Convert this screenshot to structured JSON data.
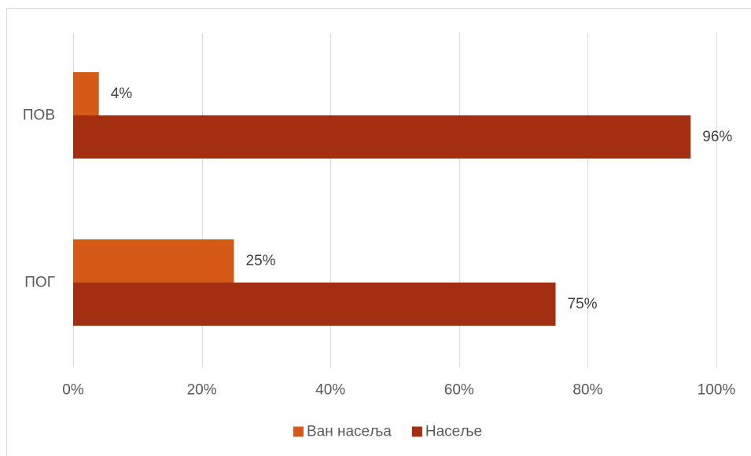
{
  "chart_data": {
    "type": "bar",
    "orientation": "horizontal",
    "categories": [
      "ПОВ",
      "ПОГ"
    ],
    "series": [
      {
        "name": "Ван насеља",
        "values": [
          4,
          25
        ],
        "color": "#D55A18"
      },
      {
        "name": "Насеље",
        "values": [
          96,
          75
        ],
        "color": "#A42E10"
      }
    ],
    "data_labels": true,
    "value_suffix": "%",
    "xlim": [
      0,
      100
    ],
    "x_ticks": [
      0,
      20,
      40,
      60,
      80,
      100
    ],
    "x_tick_labels": [
      "0%",
      "20%",
      "40%",
      "60%",
      "80%",
      "100%"
    ],
    "grid": {
      "vertical": true,
      "horizontal": false
    },
    "legend": {
      "position": "bottom"
    }
  },
  "colors": {
    "gridline": "#D9D9D9",
    "frame": "#D9D9D9",
    "axis_text": "#595959",
    "data_label_text": "#404040"
  }
}
